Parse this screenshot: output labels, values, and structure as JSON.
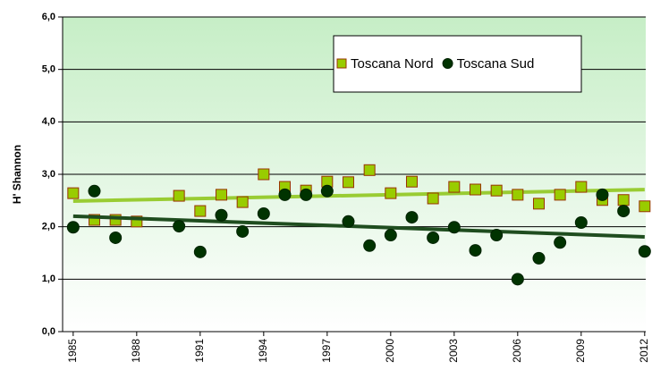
{
  "chart_data": {
    "type": "scatter",
    "ylabel": "H' Shannon",
    "xlim": [
      1984.5,
      2012.05
    ],
    "xticks": [
      1985,
      1988,
      1991,
      1994,
      1997,
      2000,
      2003,
      2006,
      2009,
      2012
    ],
    "ylim": [
      0,
      6
    ],
    "yticks": [
      {
        "value": 0,
        "label": "0,0"
      },
      {
        "value": 1,
        "label": "1,0"
      },
      {
        "value": 2,
        "label": "2,0"
      },
      {
        "value": 3,
        "label": "3,0"
      },
      {
        "value": 4,
        "label": "4,0"
      },
      {
        "value": 5,
        "label": "5,0"
      },
      {
        "value": 6,
        "label": "6,0"
      }
    ],
    "grid": true,
    "trendline": true,
    "series": [
      {
        "name": "Toscana Nord",
        "marker": "square",
        "color": "#99cc00",
        "edge": "#993300",
        "trend_color": "#99cc33",
        "x": [
          1985,
          1986,
          1987,
          1988,
          1990,
          1991,
          1992,
          1993,
          1994,
          1995,
          1996,
          1997,
          1998,
          1999,
          2000,
          2001,
          2002,
          2003,
          2004,
          2005,
          2006,
          2007,
          2008,
          2009,
          2010,
          2011,
          2012
        ],
        "values": [
          2.64,
          2.13,
          2.13,
          2.1,
          2.59,
          2.3,
          2.61,
          2.47,
          3.0,
          2.76,
          2.69,
          2.86,
          2.85,
          3.08,
          2.64,
          2.86,
          2.54,
          2.76,
          2.71,
          2.69,
          2.61,
          2.44,
          2.61,
          2.76,
          2.51,
          2.51,
          2.39
        ]
      },
      {
        "name": "Toscana Sud",
        "marker": "circle",
        "color": "#003300",
        "edge": "#002200",
        "trend_color": "#1f4d1f",
        "x": [
          1985,
          1986,
          1987,
          1990,
          1991,
          1992,
          1993,
          1994,
          1995,
          1996,
          1997,
          1998,
          1999,
          2000,
          2001,
          2002,
          2003,
          2004,
          2005,
          2006,
          2007,
          2008,
          2009,
          2010,
          2011,
          2012
        ],
        "values": [
          1.99,
          2.68,
          1.79,
          2.01,
          1.52,
          2.22,
          1.91,
          2.25,
          2.61,
          2.61,
          2.68,
          2.1,
          1.64,
          1.84,
          2.18,
          1.79,
          1.99,
          1.55,
          1.84,
          1.0,
          1.4,
          1.7,
          2.08,
          2.61,
          2.3,
          1.53
        ]
      }
    ]
  }
}
